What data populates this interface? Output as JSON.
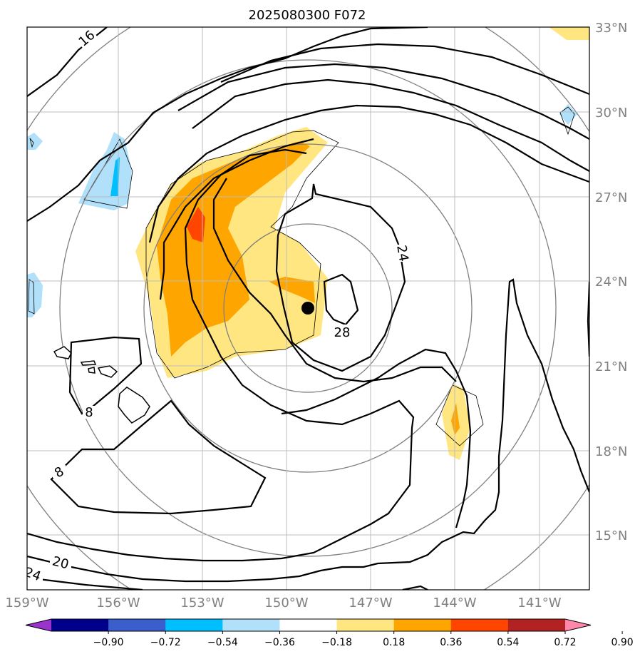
{
  "chart_data": {
    "type": "map",
    "title": "2025080300 F072",
    "x_ticks": [
      "159°W",
      "156°W",
      "153°W",
      "150°W",
      "147°W",
      "144°W",
      "141°W"
    ],
    "x_tick_values": [
      -159,
      -156,
      -153,
      -150,
      -147,
      -144,
      -141
    ],
    "y_ticks": [
      "33°N",
      "30°N",
      "27°N",
      "24°N",
      "21°N",
      "18°N",
      "15°N"
    ],
    "y_tick_values": [
      33,
      30,
      27,
      24,
      21,
      18,
      15
    ],
    "lon_range": [
      -159,
      -139
    ],
    "lat_range": [
      13,
      33
    ],
    "grid": true,
    "colorbar": {
      "orientation": "horizontal",
      "extend": "both",
      "tick_labels": [
        "−0.90",
        "−0.72",
        "−0.54",
        "−0.36",
        "−0.18",
        "0.18",
        "0.36",
        "0.54",
        "0.72",
        "0.90"
      ],
      "colors": [
        "#9933cc",
        "#00008b",
        "#3a5fcd",
        "#00bfff",
        "#b0e0fa",
        "#ffffff",
        "#ffe680",
        "#ffa500",
        "#ff4500",
        "#b22222",
        "#ff88aa"
      ]
    },
    "contour_labels": [
      "16",
      "24",
      "28",
      "8",
      "8",
      "20",
      "24"
    ],
    "marker": {
      "label": "storm-center",
      "lon": -149.2,
      "lat": 23.0
    }
  }
}
